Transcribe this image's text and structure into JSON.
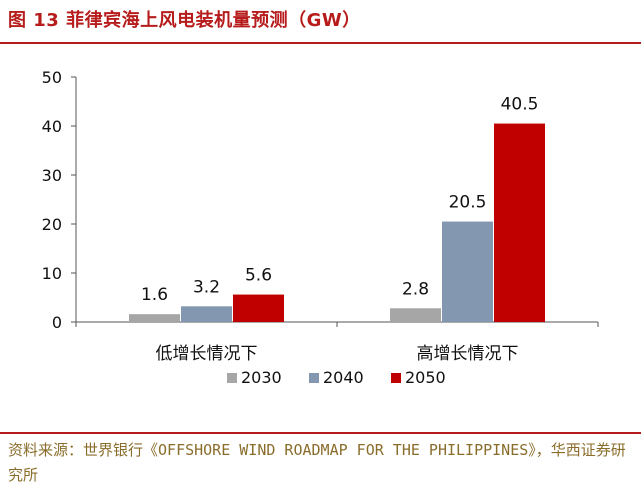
{
  "title": "图 13 菲律宾海上风电装机量预测（GW）",
  "source": "资料来源：世界银行《OFFSHORE WIND ROADMAP FOR THE PHILIPPINES》，华西证券研究所",
  "chart_data": {
    "type": "bar",
    "categories": [
      "低增长情况下",
      "高增长情况下"
    ],
    "series": [
      {
        "name": "2030",
        "values": [
          1.6,
          2.8
        ],
        "color": "#a6a6a6"
      },
      {
        "name": "2040",
        "values": [
          3.2,
          20.5
        ],
        "color": "#8497b0"
      },
      {
        "name": "2050",
        "values": [
          5.6,
          40.5
        ],
        "color": "#c00000"
      }
    ],
    "y_ticks": [
      0,
      10,
      20,
      30,
      40,
      50
    ],
    "ylim": [
      0,
      50
    ],
    "legend": "bottom",
    "grid": false,
    "data_labels": true
  }
}
